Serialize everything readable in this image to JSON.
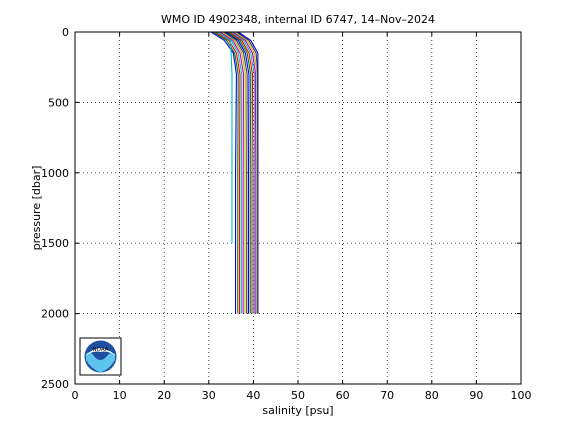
{
  "chart_data": {
    "type": "line",
    "title": "WMO ID 4902348, internal ID 6747, 14–Nov–2024",
    "xlabel": "salinity [psu]",
    "ylabel": "pressure [dbar]",
    "xlim": [
      0,
      100
    ],
    "ylim": [
      2500,
      0
    ],
    "y_axis_inverted": true,
    "grid": true,
    "grid_style": "dotted",
    "xticks": [
      "0",
      "10",
      "20",
      "30",
      "40",
      "50",
      "60",
      "70",
      "80",
      "90",
      "100"
    ],
    "yticks": [
      "0",
      "500",
      "1000",
      "1500",
      "2000",
      "2500"
    ],
    "logo": "noaa-logo",
    "series": [
      {
        "color": "#0000ff",
        "x": [
          30.5,
          33.5,
          35.5,
          36.2,
          36.0,
          36.0
        ],
        "y": [
          0,
          60,
          150,
          300,
          1000,
          2000
        ]
      },
      {
        "color": "#008000",
        "x": [
          31.0,
          34.0,
          35.8,
          36.6,
          36.5,
          36.5
        ],
        "y": [
          0,
          60,
          150,
          300,
          1000,
          2000
        ]
      },
      {
        "color": "#ff0000",
        "x": [
          31.5,
          34.5,
          36.2,
          37.0,
          36.9,
          36.9
        ],
        "y": [
          0,
          60,
          150,
          300,
          1000,
          2000
        ]
      },
      {
        "color": "#00bfbf",
        "x": [
          32.0,
          35.0,
          36.6,
          37.4,
          37.3,
          37.3
        ],
        "y": [
          0,
          60,
          150,
          300,
          1000,
          2000
        ]
      },
      {
        "color": "#bf00bf",
        "x": [
          32.5,
          35.4,
          37.0,
          37.8,
          37.7,
          37.7
        ],
        "y": [
          0,
          60,
          150,
          300,
          1000,
          2000
        ]
      },
      {
        "color": "#bfbf00",
        "x": [
          33.0,
          35.8,
          37.4,
          38.2,
          38.1,
          38.1
        ],
        "y": [
          0,
          60,
          150,
          300,
          1000,
          2000
        ]
      },
      {
        "color": "#404040",
        "x": [
          33.4,
          36.2,
          37.8,
          38.6,
          38.5,
          38.5
        ],
        "y": [
          0,
          60,
          150,
          300,
          1000,
          2000
        ]
      },
      {
        "color": "#0000ff",
        "x": [
          33.8,
          36.6,
          38.2,
          39.0,
          38.9,
          38.9
        ],
        "y": [
          0,
          60,
          150,
          300,
          1000,
          2000
        ]
      },
      {
        "color": "#008000",
        "x": [
          34.2,
          37.0,
          38.6,
          39.4,
          39.3,
          39.3
        ],
        "y": [
          0,
          60,
          150,
          300,
          1000,
          2000
        ]
      },
      {
        "color": "#ff0000",
        "x": [
          34.6,
          37.4,
          39.0,
          39.8,
          39.7,
          39.7
        ],
        "y": [
          0,
          60,
          150,
          300,
          1000,
          2000
        ]
      },
      {
        "color": "#00bfbf",
        "x": [
          35.0,
          37.8,
          39.4,
          40.2,
          40.1,
          40.1
        ],
        "y": [
          0,
          60,
          150,
          300,
          1000,
          2000
        ]
      },
      {
        "color": "#bf00bf",
        "x": [
          35.4,
          38.2,
          39.8,
          40.5,
          40.4,
          40.4
        ],
        "y": [
          0,
          60,
          150,
          300,
          1000,
          2000
        ]
      },
      {
        "color": "#bfbf00",
        "x": [
          35.8,
          38.6,
          40.2,
          40.8,
          40.7,
          40.7
        ],
        "y": [
          0,
          60,
          150,
          300,
          1000,
          2000
        ]
      },
      {
        "color": "#404040",
        "x": [
          36.2,
          39.0,
          40.6,
          41.0,
          41.0,
          41.0
        ],
        "y": [
          0,
          60,
          150,
          300,
          1000,
          2000
        ]
      },
      {
        "color": "#0000ff",
        "x": [
          36.6,
          39.4,
          41.0,
          41.0,
          41.0,
          41.0
        ],
        "y": [
          0,
          60,
          150,
          300,
          1000,
          2000
        ]
      },
      {
        "color": "#00bfbf",
        "x": [
          32.0,
          34.8,
          35.0,
          35.2,
          35.2,
          35.2
        ],
        "y": [
          0,
          60,
          150,
          300,
          1000,
          1500
        ]
      }
    ]
  }
}
